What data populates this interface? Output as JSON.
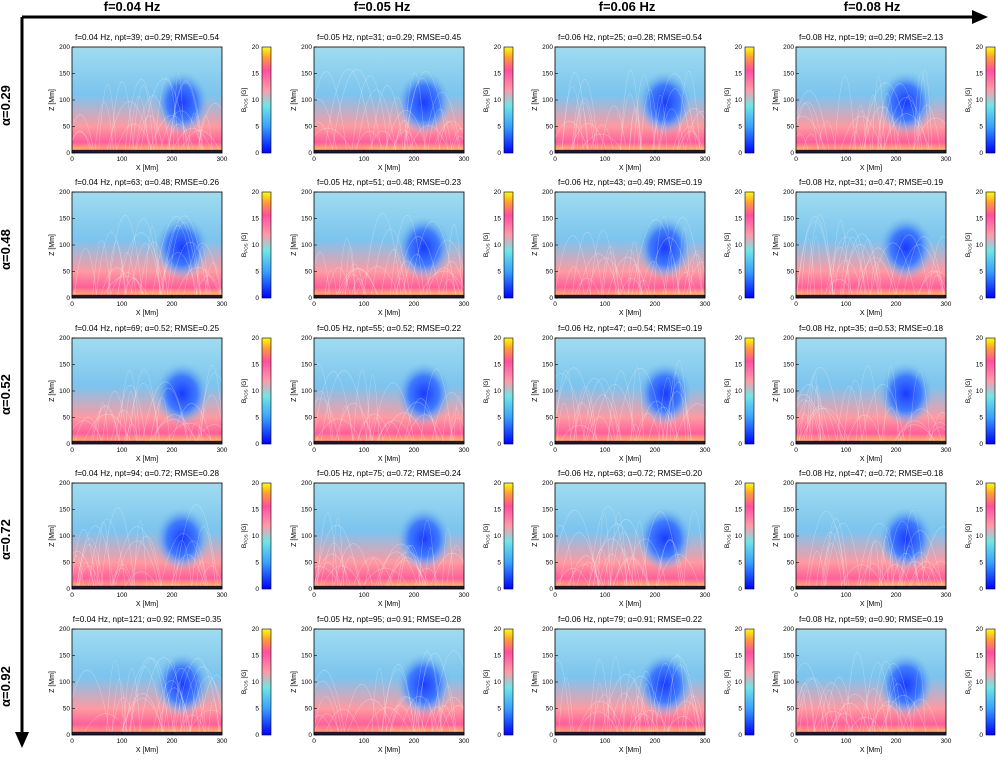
{
  "col_headers": [
    "f=0.04 Hz",
    "f=0.05 Hz",
    "f=0.06 Hz",
    "f=0.08 Hz"
  ],
  "row_headers": [
    "α=0.29",
    "α=0.48",
    "α=0.52",
    "α=0.72",
    "α=0.92"
  ],
  "colors": {
    "text": "#000000",
    "cmap_low": "#0000ff",
    "cmap_mid": "#66e0e8",
    "cmap_high": "#ff4fa0",
    "cmap_top": "#ffff00"
  },
  "chart_data": {
    "type": "heatmap",
    "grid": {
      "rows": 5,
      "cols": 4
    },
    "xlabel": "X [Mm]",
    "ylabel": "Z [Mm]",
    "colorbar_label": "B_POS [G]",
    "xlim": [
      0,
      300
    ],
    "ylim": [
      0,
      200
    ],
    "clim": [
      0,
      20
    ],
    "x_ticks": [
      0,
      100,
      200,
      300
    ],
    "y_ticks": [
      0,
      50,
      100,
      150,
      200
    ],
    "colorbar_ticks": [
      0,
      5,
      10,
      15,
      20
    ],
    "panels": [
      [
        {
          "title": "f=0.04 Hz, npt=39; α=0.29; RMSE=0.54",
          "f_hz": 0.04,
          "npt": 39,
          "alpha": 0.29,
          "rmse": 0.54
        },
        {
          "title": "f=0.05 Hz, npt=31; α=0.29; RMSE=0.45",
          "f_hz": 0.05,
          "npt": 31,
          "alpha": 0.29,
          "rmse": 0.45
        },
        {
          "title": "f=0.06 Hz, npt=25; α=0.28; RMSE=0.54",
          "f_hz": 0.06,
          "npt": 25,
          "alpha": 0.28,
          "rmse": 0.54
        },
        {
          "title": "f=0.08 Hz, npt=19; α=0.29; RMSE=2.13",
          "f_hz": 0.08,
          "npt": 19,
          "alpha": 0.29,
          "rmse": 2.13
        }
      ],
      [
        {
          "title": "f=0.04 Hz, npt=63; α=0.48; RMSE=0.26",
          "f_hz": 0.04,
          "npt": 63,
          "alpha": 0.48,
          "rmse": 0.26
        },
        {
          "title": "f=0.05 Hz, npt=51; α=0.48; RMSE=0.23",
          "f_hz": 0.05,
          "npt": 51,
          "alpha": 0.48,
          "rmse": 0.23
        },
        {
          "title": "f=0.06 Hz, npt=43; α=0.49; RMSE=0.19",
          "f_hz": 0.06,
          "npt": 43,
          "alpha": 0.49,
          "rmse": 0.19
        },
        {
          "title": "f=0.08 Hz, npt=31; α=0.47; RMSE=0.19",
          "f_hz": 0.08,
          "npt": 31,
          "alpha": 0.47,
          "rmse": 0.19
        }
      ],
      [
        {
          "title": "f=0.04 Hz, npt=69; α=0.52; RMSE=0.25",
          "f_hz": 0.04,
          "npt": 69,
          "alpha": 0.52,
          "rmse": 0.25
        },
        {
          "title": "f=0.05 Hz, npt=55; α=0.52; RMSE=0.22",
          "f_hz": 0.05,
          "npt": 55,
          "alpha": 0.52,
          "rmse": 0.22
        },
        {
          "title": "f=0.06 Hz, npt=47; α=0.54; RMSE=0.19",
          "f_hz": 0.06,
          "npt": 47,
          "alpha": 0.54,
          "rmse": 0.19
        },
        {
          "title": "f=0.08 Hz, npt=35; α=0.53; RMSE=0.18",
          "f_hz": 0.08,
          "npt": 35,
          "alpha": 0.53,
          "rmse": 0.18
        }
      ],
      [
        {
          "title": "f=0.04 Hz, npt=94; α=0.72; RMSE=0.28",
          "f_hz": 0.04,
          "npt": 94,
          "alpha": 0.72,
          "rmse": 0.28
        },
        {
          "title": "f=0.05 Hz, npt=75; α=0.72; RMSE=0.24",
          "f_hz": 0.05,
          "npt": 75,
          "alpha": 0.72,
          "rmse": 0.24
        },
        {
          "title": "f=0.06 Hz, npt=63; α=0.72; RMSE=0.20",
          "f_hz": 0.06,
          "npt": 63,
          "alpha": 0.72,
          "rmse": 0.2
        },
        {
          "title": "f=0.08 Hz, npt=47; α=0.72; RMSE=0.18",
          "f_hz": 0.08,
          "npt": 47,
          "alpha": 0.72,
          "rmse": 0.18
        }
      ],
      [
        {
          "title": "f=0.04 Hz, npt=121; α=0.92; RMSE=0.35",
          "f_hz": 0.04,
          "npt": 121,
          "alpha": 0.92,
          "rmse": 0.35
        },
        {
          "title": "f=0.05 Hz, npt=95; α=0.91; RMSE=0.28",
          "f_hz": 0.05,
          "npt": 95,
          "alpha": 0.91,
          "rmse": 0.28
        },
        {
          "title": "f=0.06 Hz, npt=79; α=0.91; RMSE=0.22",
          "f_hz": 0.06,
          "npt": 79,
          "alpha": 0.91,
          "rmse": 0.22
        },
        {
          "title": "f=0.08 Hz, npt=59; α=0.90; RMSE=0.19",
          "f_hz": 0.08,
          "npt": 59,
          "alpha": 0.9,
          "rmse": 0.19
        }
      ]
    ]
  }
}
